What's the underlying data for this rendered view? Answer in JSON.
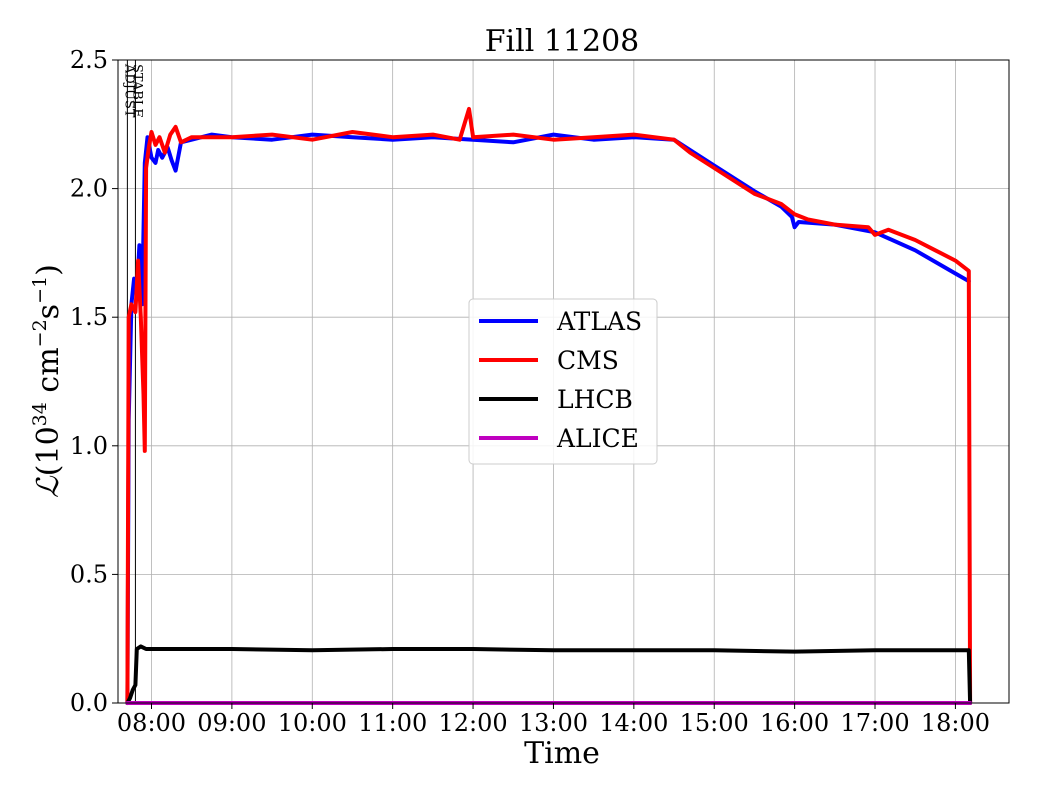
{
  "chart_data": {
    "type": "line",
    "title": "Fill 11208",
    "xlabel": "Time",
    "ylabel": {
      "symbol": "ℒ",
      "open": "(10",
      "exp1": "34",
      "mid": " cm",
      "exp2": "−2",
      "s": "s",
      "exp3": "−1",
      "close": ")"
    },
    "xlim": [
      "07:35",
      "18:40"
    ],
    "ylim": [
      0,
      2.5
    ],
    "grid": true,
    "legend_position": "center-right",
    "x_ticks": [
      "08:00",
      "09:00",
      "10:00",
      "11:00",
      "12:00",
      "13:00",
      "14:00",
      "15:00",
      "16:00",
      "17:00",
      "18:00"
    ],
    "y_ticks": [
      "0.0",
      "0.5",
      "1.0",
      "1.5",
      "2.0",
      "2.5"
    ],
    "markers": [
      {
        "label": "ADJUST",
        "time": "07:42"
      },
      {
        "label": "STABLE",
        "time": "07:48"
      }
    ],
    "series": [
      {
        "name": "ATLAS",
        "color": "#0000ff",
        "points": [
          [
            "07:42",
            0.0
          ],
          [
            "07:43",
            1.1
          ],
          [
            "07:45",
            1.55
          ],
          [
            "07:47",
            1.65
          ],
          [
            "07:49",
            1.6
          ],
          [
            "07:51",
            1.78
          ],
          [
            "07:53",
            1.55
          ],
          [
            "07:55",
            2.1
          ],
          [
            "07:57",
            2.2
          ],
          [
            "08:00",
            2.12
          ],
          [
            "08:03",
            2.1
          ],
          [
            "08:05",
            2.15
          ],
          [
            "08:08",
            2.12
          ],
          [
            "08:12",
            2.16
          ],
          [
            "08:15",
            2.11
          ],
          [
            "08:18",
            2.07
          ],
          [
            "08:22",
            2.18
          ],
          [
            "08:30",
            2.19
          ],
          [
            "08:45",
            2.21
          ],
          [
            "09:00",
            2.2
          ],
          [
            "09:30",
            2.19
          ],
          [
            "10:00",
            2.21
          ],
          [
            "10:30",
            2.2
          ],
          [
            "11:00",
            2.19
          ],
          [
            "11:30",
            2.2
          ],
          [
            "12:00",
            2.19
          ],
          [
            "12:30",
            2.18
          ],
          [
            "13:00",
            2.21
          ],
          [
            "13:30",
            2.19
          ],
          [
            "14:00",
            2.2
          ],
          [
            "14:30",
            2.19
          ],
          [
            "14:42",
            2.15
          ],
          [
            "15:00",
            2.09
          ],
          [
            "15:30",
            1.99
          ],
          [
            "15:50",
            1.93
          ],
          [
            "15:58",
            1.89
          ],
          [
            "16:00",
            1.85
          ],
          [
            "16:03",
            1.87
          ],
          [
            "16:30",
            1.86
          ],
          [
            "17:00",
            1.83
          ],
          [
            "17:30",
            1.76
          ],
          [
            "18:00",
            1.67
          ],
          [
            "18:10",
            1.64
          ]
        ]
      },
      {
        "name": "CMS",
        "color": "#ff0000",
        "points": [
          [
            "07:42",
            0.0
          ],
          [
            "07:43",
            1.5
          ],
          [
            "07:45",
            1.55
          ],
          [
            "07:48",
            1.52
          ],
          [
            "07:50",
            1.72
          ],
          [
            "07:52",
            1.5
          ],
          [
            "07:54",
            1.2
          ],
          [
            "07:55",
            0.98
          ],
          [
            "07:56",
            2.08
          ],
          [
            "07:58",
            2.16
          ],
          [
            "08:00",
            2.22
          ],
          [
            "08:03",
            2.17
          ],
          [
            "08:06",
            2.2
          ],
          [
            "08:10",
            2.14
          ],
          [
            "08:14",
            2.21
          ],
          [
            "08:18",
            2.24
          ],
          [
            "08:22",
            2.18
          ],
          [
            "08:30",
            2.2
          ],
          [
            "09:00",
            2.2
          ],
          [
            "09:30",
            2.21
          ],
          [
            "10:00",
            2.19
          ],
          [
            "10:30",
            2.22
          ],
          [
            "11:00",
            2.2
          ],
          [
            "11:30",
            2.21
          ],
          [
            "11:50",
            2.19
          ],
          [
            "11:57",
            2.31
          ],
          [
            "12:00",
            2.2
          ],
          [
            "12:30",
            2.21
          ],
          [
            "13:00",
            2.19
          ],
          [
            "13:30",
            2.2
          ],
          [
            "14:00",
            2.21
          ],
          [
            "14:30",
            2.19
          ],
          [
            "14:42",
            2.14
          ],
          [
            "15:00",
            2.08
          ],
          [
            "15:30",
            1.98
          ],
          [
            "15:50",
            1.94
          ],
          [
            "16:00",
            1.9
          ],
          [
            "16:10",
            1.88
          ],
          [
            "16:30",
            1.86
          ],
          [
            "16:55",
            1.85
          ],
          [
            "17:00",
            1.82
          ],
          [
            "17:10",
            1.84
          ],
          [
            "17:30",
            1.8
          ],
          [
            "17:45",
            1.76
          ],
          [
            "18:00",
            1.72
          ],
          [
            "18:10",
            1.68
          ],
          [
            "18:11",
            0.0
          ]
        ]
      },
      {
        "name": "LHCB",
        "color": "#000000",
        "points": [
          [
            "07:42",
            0.0
          ],
          [
            "07:44",
            0.02
          ],
          [
            "07:46",
            0.05
          ],
          [
            "07:48",
            0.07
          ],
          [
            "07:49",
            0.21
          ],
          [
            "07:52",
            0.22
          ],
          [
            "07:56",
            0.21
          ],
          [
            "08:00",
            0.21
          ],
          [
            "09:00",
            0.21
          ],
          [
            "10:00",
            0.205
          ],
          [
            "11:00",
            0.21
          ],
          [
            "12:00",
            0.21
          ],
          [
            "13:00",
            0.205
          ],
          [
            "14:00",
            0.205
          ],
          [
            "15:00",
            0.205
          ],
          [
            "16:00",
            0.2
          ],
          [
            "17:00",
            0.205
          ],
          [
            "18:00",
            0.205
          ],
          [
            "18:10",
            0.205
          ],
          [
            "18:11",
            0.0
          ]
        ]
      },
      {
        "name": "ALICE",
        "color": "#bf00bf",
        "points": [
          [
            "07:42",
            0.0
          ],
          [
            "18:11",
            0.0
          ]
        ]
      }
    ]
  }
}
